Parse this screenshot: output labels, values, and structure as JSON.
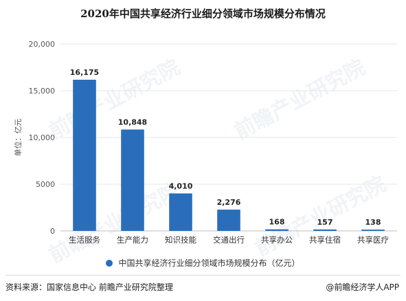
{
  "title": "2020年中国共享经济行业细分领域市场规模分布情况",
  "chart_data": {
    "type": "bar",
    "categories": [
      "生活服务",
      "生产能力",
      "知识技能",
      "交通出行",
      "共享办公",
      "共享住宿",
      "共享医疗"
    ],
    "values": [
      16175,
      10848,
      4010,
      2276,
      168,
      157,
      138
    ],
    "data_labels": [
      "16,175",
      "10,848",
      "4,010",
      "2,276",
      "168",
      "157",
      "138"
    ],
    "series_name": "中国共享经济行业细分领域市场规模分布（亿元）",
    "ylabel": "单位：亿元",
    "ylim": [
      0,
      20000
    ],
    "yticks": [
      0,
      5000,
      10000,
      15000,
      20000
    ],
    "ytick_labels": [
      "0",
      "5000",
      "10,000",
      "15,000",
      "20,000"
    ],
    "bar_color": "#2a6ebb",
    "grid": true,
    "legend_position": "bottom"
  },
  "footer": {
    "source": "资料来源：国家信息中心 前瞻产业研究院整理",
    "brand": "@前瞻经济学人APP"
  },
  "watermark": "前瞻产业研究院"
}
